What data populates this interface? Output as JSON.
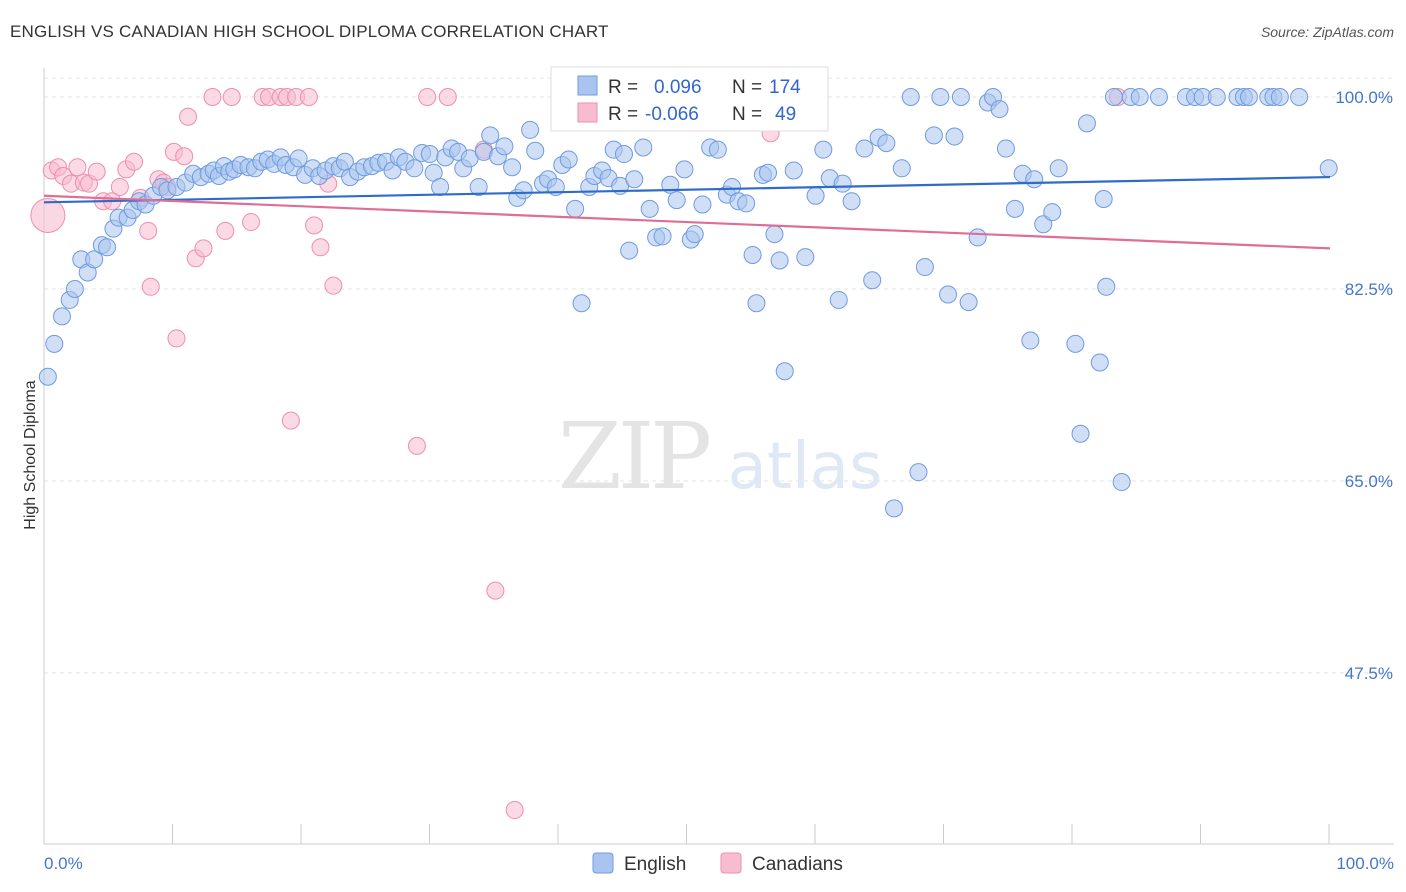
{
  "header": {
    "title": "ENGLISH VS CANADIAN HIGH SCHOOL DIPLOMA CORRELATION CHART",
    "source": "Source: ZipAtlas.com"
  },
  "watermark": {
    "zip": "ZIP",
    "atlas": "atlas"
  },
  "colors": {
    "english_fill": "#a9c4ee",
    "english_stroke": "#6e9be0",
    "english_line": "#2f6cc9",
    "canadian_fill": "#f7bcd0",
    "canadian_stroke": "#ec8fae",
    "canadian_line": "#e06d97",
    "tick_text": "#4477cc",
    "grid": "#e3e3e3"
  },
  "chart_data": {
    "type": "scatter",
    "title": "ENGLISH VS CANADIAN HIGH SCHOOL DIPLOMA CORRELATION CHART",
    "xlabel": "",
    "ylabel": "High School Diploma",
    "xlim": [
      0,
      100
    ],
    "ylim": [
      30.5,
      103
    ],
    "x_tick_labels": [
      "0.0%",
      "100.0%"
    ],
    "y_ticks": [
      {
        "value": 100.0,
        "label": "100.0%"
      },
      {
        "value": 82.5,
        "label": "82.5%"
      },
      {
        "value": 65.0,
        "label": "65.0%"
      },
      {
        "value": 47.5,
        "label": "47.5%"
      }
    ],
    "grid": true,
    "legend_position": "top-center",
    "legend": [
      {
        "series": "English",
        "r_label": "R =",
        "r_value": "0.096",
        "n_label": "N =",
        "n_value": "174"
      },
      {
        "series": "Canadians",
        "r_label": "R =",
        "r_value": "-0.066",
        "n_label": "N =",
        "n_value": "49"
      }
    ],
    "series": [
      {
        "name": "English",
        "trend": {
          "x": [
            0,
            100
          ],
          "y": [
            90.4,
            92.7
          ]
        },
        "points": [
          [
            0.3,
            74.5
          ],
          [
            0.8,
            77.5
          ],
          [
            1.4,
            80
          ],
          [
            2,
            81.5
          ],
          [
            2.4,
            82.5
          ],
          [
            2.9,
            85.2
          ],
          [
            3.4,
            84
          ],
          [
            3.9,
            85.2
          ],
          [
            4.5,
            86.5
          ],
          [
            4.9,
            86.3
          ],
          [
            5.4,
            88
          ],
          [
            5.8,
            89
          ],
          [
            6.5,
            89
          ],
          [
            6.9,
            89.7
          ],
          [
            7.4,
            90.5
          ],
          [
            7.9,
            90.2
          ],
          [
            8.5,
            91
          ],
          [
            9.1,
            91.8
          ],
          [
            9.6,
            91.5
          ],
          [
            10.3,
            91.8
          ],
          [
            11,
            92.2
          ],
          [
            11.6,
            93
          ],
          [
            12.2,
            92.7
          ],
          [
            12.8,
            93
          ],
          [
            13.2,
            93.3
          ],
          [
            13.6,
            92.8
          ],
          [
            14,
            93.7
          ],
          [
            14.4,
            93.2
          ],
          [
            14.8,
            93.4
          ],
          [
            15.3,
            93.8
          ],
          [
            15.9,
            93.6
          ],
          [
            16.4,
            93.5
          ],
          [
            16.9,
            94.1
          ],
          [
            17.4,
            94.3
          ],
          [
            17.9,
            93.9
          ],
          [
            18.4,
            94.5
          ],
          [
            18.8,
            93.8
          ],
          [
            19.4,
            93.6
          ],
          [
            19.8,
            94.4
          ],
          [
            20.3,
            92.9
          ],
          [
            20.9,
            93.5
          ],
          [
            21.4,
            92.8
          ],
          [
            21.9,
            93.3
          ],
          [
            22.5,
            93.7
          ],
          [
            23,
            93.5
          ],
          [
            23.4,
            94.1
          ],
          [
            23.8,
            92.7
          ],
          [
            24.4,
            93.2
          ],
          [
            24.9,
            93.6
          ],
          [
            25.5,
            93.7
          ],
          [
            26,
            94
          ],
          [
            26.6,
            94.1
          ],
          [
            27.1,
            93.3
          ],
          [
            27.6,
            94.5
          ],
          [
            28.1,
            94.1
          ],
          [
            28.8,
            93.5
          ],
          [
            29.4,
            94.9
          ],
          [
            30,
            94.8
          ],
          [
            30.3,
            93.1
          ],
          [
            30.8,
            91.8
          ],
          [
            31.2,
            94.5
          ],
          [
            31.7,
            95.3
          ],
          [
            32.2,
            95
          ],
          [
            32.6,
            93.5
          ],
          [
            33.1,
            94.4
          ],
          [
            33.8,
            91.8
          ],
          [
            34.2,
            95
          ],
          [
            34.7,
            96.5
          ],
          [
            35.3,
            94.6
          ],
          [
            35.8,
            95.5
          ],
          [
            36.4,
            93.6
          ],
          [
            36.8,
            90.8
          ],
          [
            37.3,
            91.5
          ],
          [
            37.8,
            97
          ],
          [
            38.2,
            95.1
          ],
          [
            38.8,
            92.1
          ],
          [
            39.2,
            92.5
          ],
          [
            39.8,
            91.8
          ],
          [
            40.3,
            93.8
          ],
          [
            40.8,
            94.3
          ],
          [
            41.3,
            89.8
          ],
          [
            41.8,
            81.2
          ],
          [
            42.4,
            91.8
          ],
          [
            42.8,
            92.8
          ],
          [
            43.4,
            93.3
          ],
          [
            43.9,
            92.6
          ],
          [
            44.3,
            95.2
          ],
          [
            44.8,
            91.9
          ],
          [
            45.1,
            94.8
          ],
          [
            45.5,
            86
          ],
          [
            45.9,
            92.5
          ],
          [
            46.6,
            95.4
          ],
          [
            47.1,
            89.8
          ],
          [
            47.6,
            87.2
          ],
          [
            48.1,
            87.3
          ],
          [
            48.7,
            92
          ],
          [
            49.2,
            90.6
          ],
          [
            49.8,
            93.4
          ],
          [
            50.3,
            87
          ],
          [
            50.6,
            87.5
          ],
          [
            51.2,
            90.2
          ],
          [
            51.8,
            95.4
          ],
          [
            52.4,
            95.2
          ],
          [
            53.1,
            91.1
          ],
          [
            53.5,
            91.8
          ],
          [
            54,
            90.5
          ],
          [
            54.6,
            90.3
          ],
          [
            55.1,
            85.6
          ],
          [
            55.4,
            81.2
          ],
          [
            55.9,
            92.9
          ],
          [
            56.3,
            93.1
          ],
          [
            56.8,
            87.5
          ],
          [
            57.2,
            85.1
          ],
          [
            57.6,
            75
          ],
          [
            58.3,
            93.3
          ],
          [
            59.2,
            85.4
          ],
          [
            60,
            91
          ],
          [
            60.6,
            95.2
          ],
          [
            61.1,
            92.6
          ],
          [
            61.8,
            81.5
          ],
          [
            62.1,
            92.1
          ],
          [
            62.8,
            90.5
          ],
          [
            63.8,
            95.3
          ],
          [
            64.4,
            83.3
          ],
          [
            64.9,
            96.3
          ],
          [
            65.5,
            95.8
          ],
          [
            66.1,
            62.5
          ],
          [
            66.7,
            93.5
          ],
          [
            67.4,
            100
          ],
          [
            68,
            65.8
          ],
          [
            68.5,
            84.5
          ],
          [
            69.2,
            96.5
          ],
          [
            69.7,
            100
          ],
          [
            70.3,
            82
          ],
          [
            70.8,
            96.4
          ],
          [
            71.3,
            100
          ],
          [
            71.9,
            81.3
          ],
          [
            72.6,
            87.2
          ],
          [
            73.4,
            99.5
          ],
          [
            73.8,
            100
          ],
          [
            74.3,
            98.9
          ],
          [
            74.8,
            95.3
          ],
          [
            75.5,
            89.8
          ],
          [
            76.1,
            93
          ],
          [
            76.7,
            77.8
          ],
          [
            77,
            92.5
          ],
          [
            77.7,
            88.4
          ],
          [
            78.4,
            89.5
          ],
          [
            78.9,
            93.5
          ],
          [
            80.2,
            77.5
          ],
          [
            80.6,
            69.3
          ],
          [
            81.1,
            97.6
          ],
          [
            82.1,
            75.8
          ],
          [
            82.4,
            90.7
          ],
          [
            82.6,
            82.7
          ],
          [
            83.2,
            100
          ],
          [
            83.8,
            64.9
          ],
          [
            84.5,
            100
          ],
          [
            85.2,
            100
          ],
          [
            86.7,
            100
          ],
          [
            88.8,
            100
          ],
          [
            89.5,
            100
          ],
          [
            90.1,
            100
          ],
          [
            91.2,
            100
          ],
          [
            92.8,
            100
          ],
          [
            93.3,
            100
          ],
          [
            93.7,
            100
          ],
          [
            95.2,
            100
          ],
          [
            95.6,
            100
          ],
          [
            96.1,
            100
          ],
          [
            97.6,
            100
          ],
          [
            99.9,
            93.5
          ]
        ]
      },
      {
        "name": "Canadians",
        "trend": {
          "x": [
            0,
            100
          ],
          "y": [
            91,
            86.2
          ]
        },
        "points": [
          [
            0.3,
            89.2
          ],
          [
            0.6,
            93.3
          ],
          [
            1.1,
            93.6
          ],
          [
            1.5,
            92.8
          ],
          [
            2.1,
            92.1
          ],
          [
            2.6,
            93.6
          ],
          [
            3.1,
            92.2
          ],
          [
            3.5,
            92.1
          ],
          [
            4.1,
            93.2
          ],
          [
            4.6,
            90.5
          ],
          [
            5.3,
            90.5
          ],
          [
            5.9,
            91.8
          ],
          [
            6.4,
            93.4
          ],
          [
            7,
            94.1
          ],
          [
            7.5,
            90.8
          ],
          [
            8.1,
            87.8
          ],
          [
            8.3,
            82.7
          ],
          [
            8.9,
            92.5
          ],
          [
            9.3,
            92.2
          ],
          [
            9.6,
            91.8
          ],
          [
            10.1,
            95
          ],
          [
            10.3,
            78
          ],
          [
            10.9,
            94.6
          ],
          [
            11.2,
            98.2
          ],
          [
            11.8,
            85.3
          ],
          [
            12.4,
            86.2
          ],
          [
            13.1,
            100
          ],
          [
            14.1,
            87.8
          ],
          [
            14.6,
            100
          ],
          [
            16.1,
            88.6
          ],
          [
            17,
            100
          ],
          [
            17.5,
            100
          ],
          [
            18.4,
            100
          ],
          [
            18.9,
            100
          ],
          [
            19.2,
            70.5
          ],
          [
            19.6,
            100
          ],
          [
            20.6,
            100
          ],
          [
            21,
            88.3
          ],
          [
            21.5,
            86.3
          ],
          [
            22.1,
            92.1
          ],
          [
            22.5,
            82.8
          ],
          [
            29,
            68.2
          ],
          [
            29.8,
            100
          ],
          [
            31.4,
            100
          ],
          [
            34.2,
            95.2
          ],
          [
            35.1,
            55
          ],
          [
            36.6,
            35
          ],
          [
            56.5,
            96.7
          ],
          [
            83.5,
            100
          ]
        ]
      }
    ]
  }
}
